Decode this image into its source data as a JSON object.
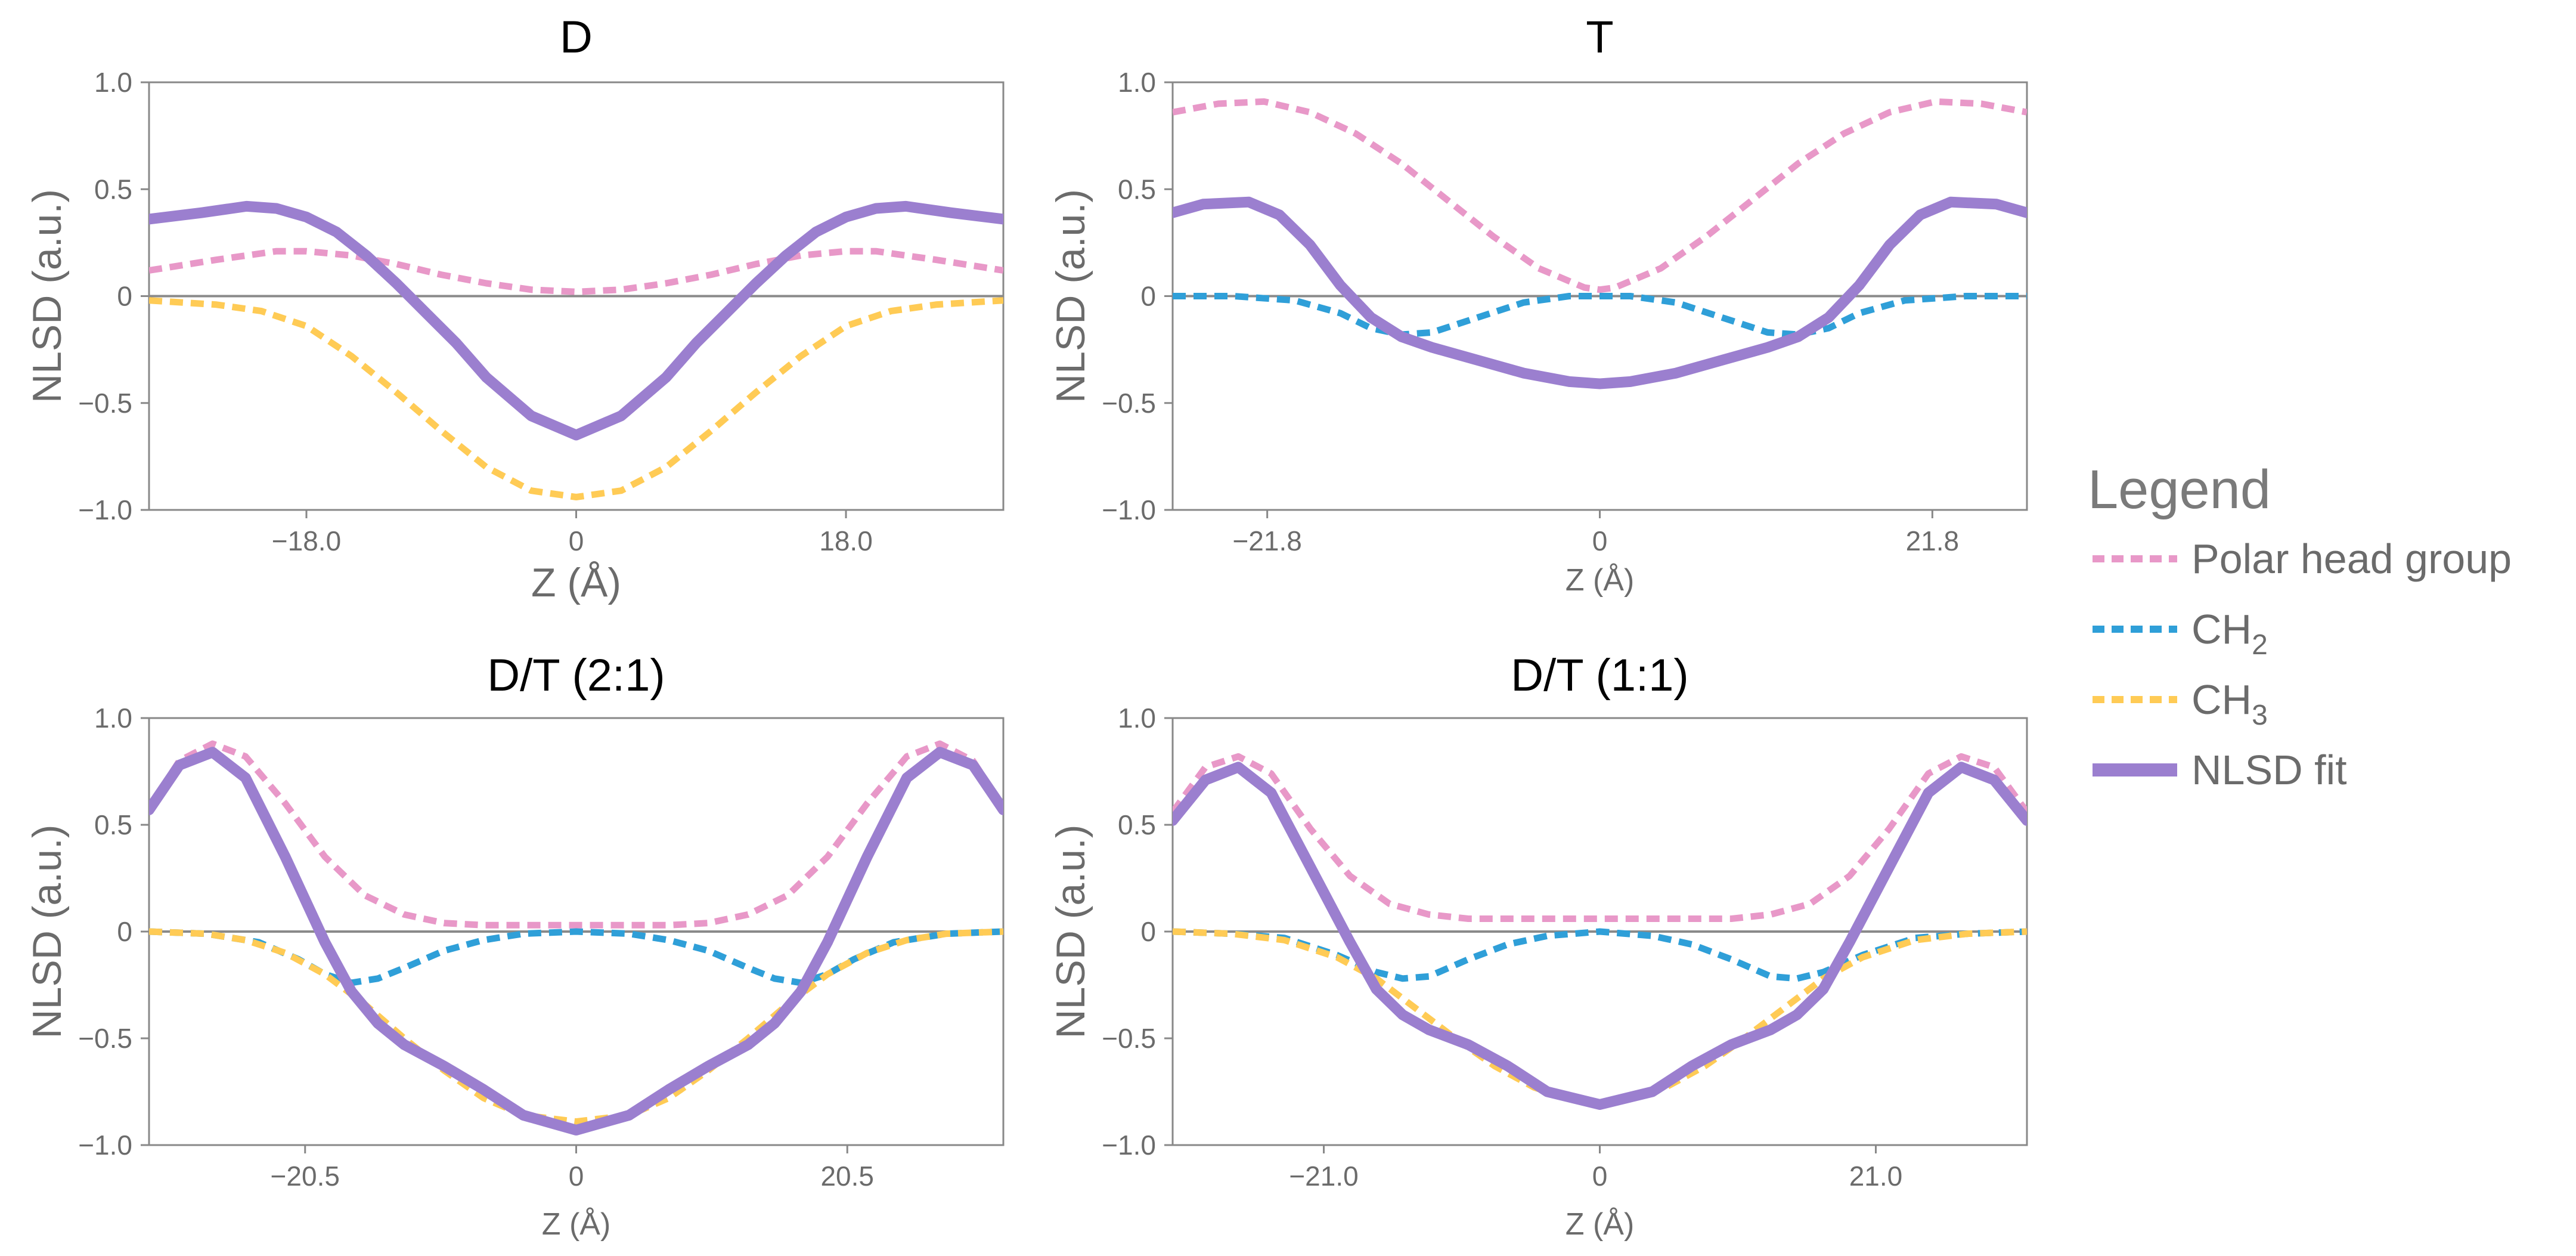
{
  "colors": {
    "polar": "#e898c8",
    "ch2": "#2f9fd8",
    "ch3": "#ffcb55",
    "fit": "#9b7fcf",
    "axis": "#888888",
    "zero_line": "#8a8a8a",
    "text": "#6b6b6b"
  },
  "legend": {
    "title": "Legend",
    "items": [
      {
        "key": "polar",
        "label": "Polar head group",
        "sub": "",
        "style": "dotted"
      },
      {
        "key": "ch2",
        "label": "CH",
        "sub": "2",
        "style": "dotted"
      },
      {
        "key": "ch3",
        "label": "CH",
        "sub": "3",
        "style": "dotted"
      },
      {
        "key": "fit",
        "label": "NLSD fit",
        "sub": "",
        "style": "solid"
      }
    ]
  },
  "chart_data": [
    {
      "type": "line",
      "title": "D",
      "xlabel": "Z (Å)",
      "ylabel": "NLSD (a.u.)",
      "xlim": [
        -28.5,
        28.5
      ],
      "ylim": [
        -1.0,
        1.0
      ],
      "xticks": [
        -18.0,
        0,
        18.0
      ],
      "xtick_labels": [
        "−18.0",
        "0",
        "18.0"
      ],
      "yticks": [
        1.0,
        0.5,
        0,
        -0.5,
        -1.0
      ],
      "ytick_labels": [
        "1.0",
        "0.5",
        "0",
        "−0.5",
        "−1.0"
      ],
      "series": [
        {
          "key": "polar",
          "name": "Polar head group",
          "x": [
            -28.5,
            -24,
            -22,
            -20,
            -18,
            -15,
            -12,
            -9,
            -6,
            -3,
            0,
            3,
            6,
            9,
            12,
            15,
            18,
            20,
            22,
            24,
            28.5
          ],
          "y": [
            0.12,
            0.17,
            0.19,
            0.21,
            0.21,
            0.19,
            0.15,
            0.1,
            0.06,
            0.03,
            0.02,
            0.03,
            0.06,
            0.1,
            0.15,
            0.19,
            0.21,
            0.21,
            0.19,
            0.17,
            0.12
          ]
        },
        {
          "key": "ch3",
          "name": "CH3",
          "x": [
            -28.5,
            -24,
            -21,
            -18,
            -15,
            -12,
            -9,
            -6,
            -3,
            0,
            3,
            6,
            9,
            12,
            15,
            18,
            21,
            24,
            28.5
          ],
          "y": [
            -0.02,
            -0.04,
            -0.07,
            -0.14,
            -0.28,
            -0.45,
            -0.63,
            -0.8,
            -0.91,
            -0.94,
            -0.91,
            -0.8,
            -0.63,
            -0.45,
            -0.28,
            -0.14,
            -0.07,
            -0.04,
            -0.02
          ]
        },
        {
          "key": "fit",
          "name": "NLSD fit",
          "x": [
            -28.5,
            -25,
            -22,
            -20,
            -18,
            -16,
            -14,
            -12,
            -10,
            -8,
            -6,
            -3,
            0,
            3,
            6,
            8,
            10,
            12,
            14,
            16,
            18,
            20,
            22,
            25,
            28.5
          ],
          "y": [
            0.36,
            0.39,
            0.42,
            0.41,
            0.37,
            0.3,
            0.19,
            0.06,
            -0.08,
            -0.22,
            -0.38,
            -0.56,
            -0.65,
            -0.56,
            -0.38,
            -0.22,
            -0.08,
            0.06,
            0.19,
            0.3,
            0.37,
            0.41,
            0.42,
            0.39,
            0.36
          ]
        }
      ]
    },
    {
      "type": "line",
      "title": "T",
      "xlabel": "Z (Å)",
      "ylabel": "NLSD (a.u.)",
      "xlim": [
        -28,
        28
      ],
      "ylim": [
        -1.0,
        1.0
      ],
      "xticks": [
        -21.8,
        0,
        21.8
      ],
      "xtick_labels": [
        "−21.8",
        "0",
        "21.8"
      ],
      "yticks": [
        1.0,
        0.5,
        0,
        -0.5,
        -1.0
      ],
      "ytick_labels": [
        "1.0",
        "0.5",
        "0",
        "−0.5",
        "−1.0"
      ],
      "series": [
        {
          "key": "polar",
          "name": "Polar head group",
          "x": [
            -28,
            -25,
            -22,
            -19,
            -16,
            -13,
            -10,
            -7,
            -4,
            -1,
            0,
            1,
            4,
            7,
            10,
            13,
            16,
            19,
            22,
            25,
            28
          ],
          "y": [
            0.86,
            0.9,
            0.91,
            0.86,
            0.76,
            0.62,
            0.45,
            0.28,
            0.13,
            0.04,
            0.03,
            0.04,
            0.13,
            0.28,
            0.45,
            0.62,
            0.76,
            0.86,
            0.91,
            0.9,
            0.86
          ]
        },
        {
          "key": "ch2",
          "name": "CH2",
          "x": [
            -28,
            -24,
            -20,
            -17,
            -15,
            -13,
            -11,
            -8,
            -5,
            -2,
            0,
            2,
            5,
            8,
            11,
            13,
            15,
            17,
            20,
            24,
            28
          ],
          "y": [
            0.0,
            0.0,
            -0.02,
            -0.08,
            -0.15,
            -0.18,
            -0.17,
            -0.1,
            -0.03,
            0.0,
            0.0,
            0.0,
            -0.03,
            -0.1,
            -0.17,
            -0.18,
            -0.15,
            -0.08,
            -0.02,
            0.0,
            0.0
          ]
        },
        {
          "key": "fit",
          "name": "NLSD fit",
          "x": [
            -28,
            -26,
            -23,
            -21,
            -19,
            -17,
            -15,
            -13,
            -11,
            -8,
            -5,
            -2,
            0,
            2,
            5,
            8,
            11,
            13,
            15,
            17,
            19,
            21,
            23,
            26,
            28
          ],
          "y": [
            0.39,
            0.43,
            0.44,
            0.38,
            0.24,
            0.05,
            -0.1,
            -0.19,
            -0.24,
            -0.3,
            -0.36,
            -0.4,
            -0.41,
            -0.4,
            -0.36,
            -0.3,
            -0.24,
            -0.19,
            -0.1,
            0.05,
            0.24,
            0.38,
            0.44,
            0.43,
            0.39
          ]
        }
      ]
    },
    {
      "type": "line",
      "title": "D/T (2:1)",
      "xlabel": "Z (Å)",
      "ylabel": "NLSD (a.u.)",
      "xlim": [
        -32.3,
        32.3
      ],
      "ylim": [
        -1.0,
        1.0
      ],
      "xticks": [
        -20.5,
        0,
        20.5
      ],
      "xtick_labels": [
        "−20.5",
        "0",
        "20.5"
      ],
      "yticks": [
        1.0,
        0.5,
        0,
        -0.5,
        -1.0
      ],
      "ytick_labels": [
        "1.0",
        "0.5",
        "0",
        "−0.5",
        "−1.0"
      ],
      "series": [
        {
          "key": "polar",
          "name": "Polar head group",
          "x": [
            -32.3,
            -30,
            -27.5,
            -25,
            -22,
            -19,
            -16,
            -13,
            -10,
            -7,
            -4,
            0,
            4,
            7,
            10,
            13,
            16,
            19,
            22,
            25,
            27.5,
            30,
            32.3
          ],
          "y": [
            0.58,
            0.8,
            0.88,
            0.82,
            0.6,
            0.35,
            0.17,
            0.08,
            0.04,
            0.03,
            0.03,
            0.03,
            0.03,
            0.03,
            0.04,
            0.08,
            0.17,
            0.35,
            0.6,
            0.82,
            0.88,
            0.8,
            0.58
          ]
        },
        {
          "key": "ch2",
          "name": "CH2",
          "x": [
            -32.3,
            -28,
            -24,
            -21,
            -19,
            -17,
            -15,
            -13,
            -10,
            -7,
            -4,
            0,
            4,
            7,
            10,
            13,
            15,
            17,
            19,
            21,
            24,
            28,
            32.3
          ],
          "y": [
            0.0,
            -0.01,
            -0.05,
            -0.13,
            -0.2,
            -0.24,
            -0.22,
            -0.17,
            -0.09,
            -0.04,
            -0.01,
            0.0,
            -0.01,
            -0.04,
            -0.09,
            -0.17,
            -0.22,
            -0.24,
            -0.2,
            -0.13,
            -0.05,
            -0.01,
            0.0
          ]
        },
        {
          "key": "ch3",
          "name": "CH3",
          "x": [
            -32.3,
            -28,
            -25,
            -22,
            -19,
            -16,
            -13,
            -10,
            -7,
            -4,
            0,
            4,
            7,
            10,
            13,
            16,
            19,
            22,
            25,
            28,
            32.3
          ],
          "y": [
            0.0,
            -0.01,
            -0.04,
            -0.1,
            -0.2,
            -0.34,
            -0.5,
            -0.65,
            -0.78,
            -0.86,
            -0.89,
            -0.86,
            -0.78,
            -0.65,
            -0.5,
            -0.34,
            -0.2,
            -0.1,
            -0.04,
            -0.01,
            0.0
          ]
        },
        {
          "key": "fit",
          "name": "NLSD fit",
          "x": [
            -32.3,
            -30,
            -27.5,
            -25,
            -22,
            -19,
            -17,
            -15,
            -13,
            -10,
            -7,
            -4,
            0,
            4,
            7,
            10,
            13,
            15,
            17,
            19,
            22,
            25,
            27.5,
            30,
            32.3
          ],
          "y": [
            0.57,
            0.78,
            0.84,
            0.72,
            0.35,
            -0.05,
            -0.28,
            -0.43,
            -0.53,
            -0.63,
            -0.74,
            -0.86,
            -0.93,
            -0.86,
            -0.74,
            -0.63,
            -0.53,
            -0.43,
            -0.28,
            -0.05,
            0.35,
            0.72,
            0.84,
            0.78,
            0.57
          ]
        }
      ]
    },
    {
      "type": "line",
      "title": "D/T (1:1)",
      "xlabel": "Z (Å)",
      "ylabel": "NLSD (a.u.)",
      "xlim": [
        -32.5,
        32.5
      ],
      "ylim": [
        -1.0,
        1.0
      ],
      "xticks": [
        -21.0,
        0,
        21.0
      ],
      "xtick_labels": [
        "−21.0",
        "0",
        "21.0"
      ],
      "yticks": [
        1.0,
        0.5,
        0,
        -0.5,
        -1.0
      ],
      "ytick_labels": [
        "1.0",
        "0.5",
        "0",
        "−0.5",
        "−1.0"
      ],
      "series": [
        {
          "key": "polar",
          "name": "Polar head group",
          "x": [
            -32.5,
            -30,
            -27.5,
            -25,
            -22,
            -19,
            -16,
            -13,
            -10,
            -6,
            -3,
            0,
            3,
            6,
            10,
            13,
            16,
            19,
            22,
            25,
            27.5,
            30,
            32.5
          ],
          "y": [
            0.56,
            0.77,
            0.82,
            0.74,
            0.48,
            0.26,
            0.13,
            0.08,
            0.06,
            0.06,
            0.06,
            0.06,
            0.06,
            0.06,
            0.06,
            0.08,
            0.13,
            0.26,
            0.48,
            0.74,
            0.82,
            0.77,
            0.56
          ]
        },
        {
          "key": "ch2",
          "name": "CH2",
          "x": [
            -32.5,
            -28,
            -24,
            -20,
            -17,
            -15,
            -13,
            -10,
            -7,
            -4,
            0,
            4,
            7,
            10,
            13,
            15,
            17,
            20,
            24,
            28,
            32.5
          ],
          "y": [
            0.0,
            -0.01,
            -0.03,
            -0.11,
            -0.19,
            -0.22,
            -0.21,
            -0.13,
            -0.06,
            -0.02,
            0.0,
            -0.02,
            -0.06,
            -0.13,
            -0.21,
            -0.22,
            -0.19,
            -0.11,
            -0.03,
            -0.01,
            0.0
          ]
        },
        {
          "key": "ch3",
          "name": "CH3",
          "x": [
            -32.5,
            -28,
            -24,
            -20,
            -17,
            -14,
            -11,
            -8,
            -5,
            -2,
            0,
            2,
            5,
            8,
            11,
            14,
            17,
            20,
            24,
            28,
            32.5
          ],
          "y": [
            0.0,
            -0.01,
            -0.04,
            -0.12,
            -0.22,
            -0.36,
            -0.5,
            -0.63,
            -0.73,
            -0.79,
            -0.8,
            -0.79,
            -0.73,
            -0.63,
            -0.5,
            -0.36,
            -0.22,
            -0.12,
            -0.04,
            -0.01,
            0.0
          ]
        },
        {
          "key": "fit",
          "name": "NLSD fit",
          "x": [
            -32.5,
            -30,
            -27.5,
            -25,
            -22,
            -19,
            -17,
            -15,
            -13,
            -10,
            -7,
            -4,
            0,
            4,
            7,
            10,
            13,
            15,
            17,
            19,
            22,
            25,
            27.5,
            30,
            32.5
          ],
          "y": [
            0.52,
            0.71,
            0.77,
            0.65,
            0.3,
            -0.05,
            -0.27,
            -0.39,
            -0.46,
            -0.53,
            -0.63,
            -0.75,
            -0.81,
            -0.75,
            -0.63,
            -0.53,
            -0.46,
            -0.39,
            -0.27,
            -0.05,
            0.3,
            0.65,
            0.77,
            0.71,
            0.52
          ]
        }
      ]
    }
  ]
}
